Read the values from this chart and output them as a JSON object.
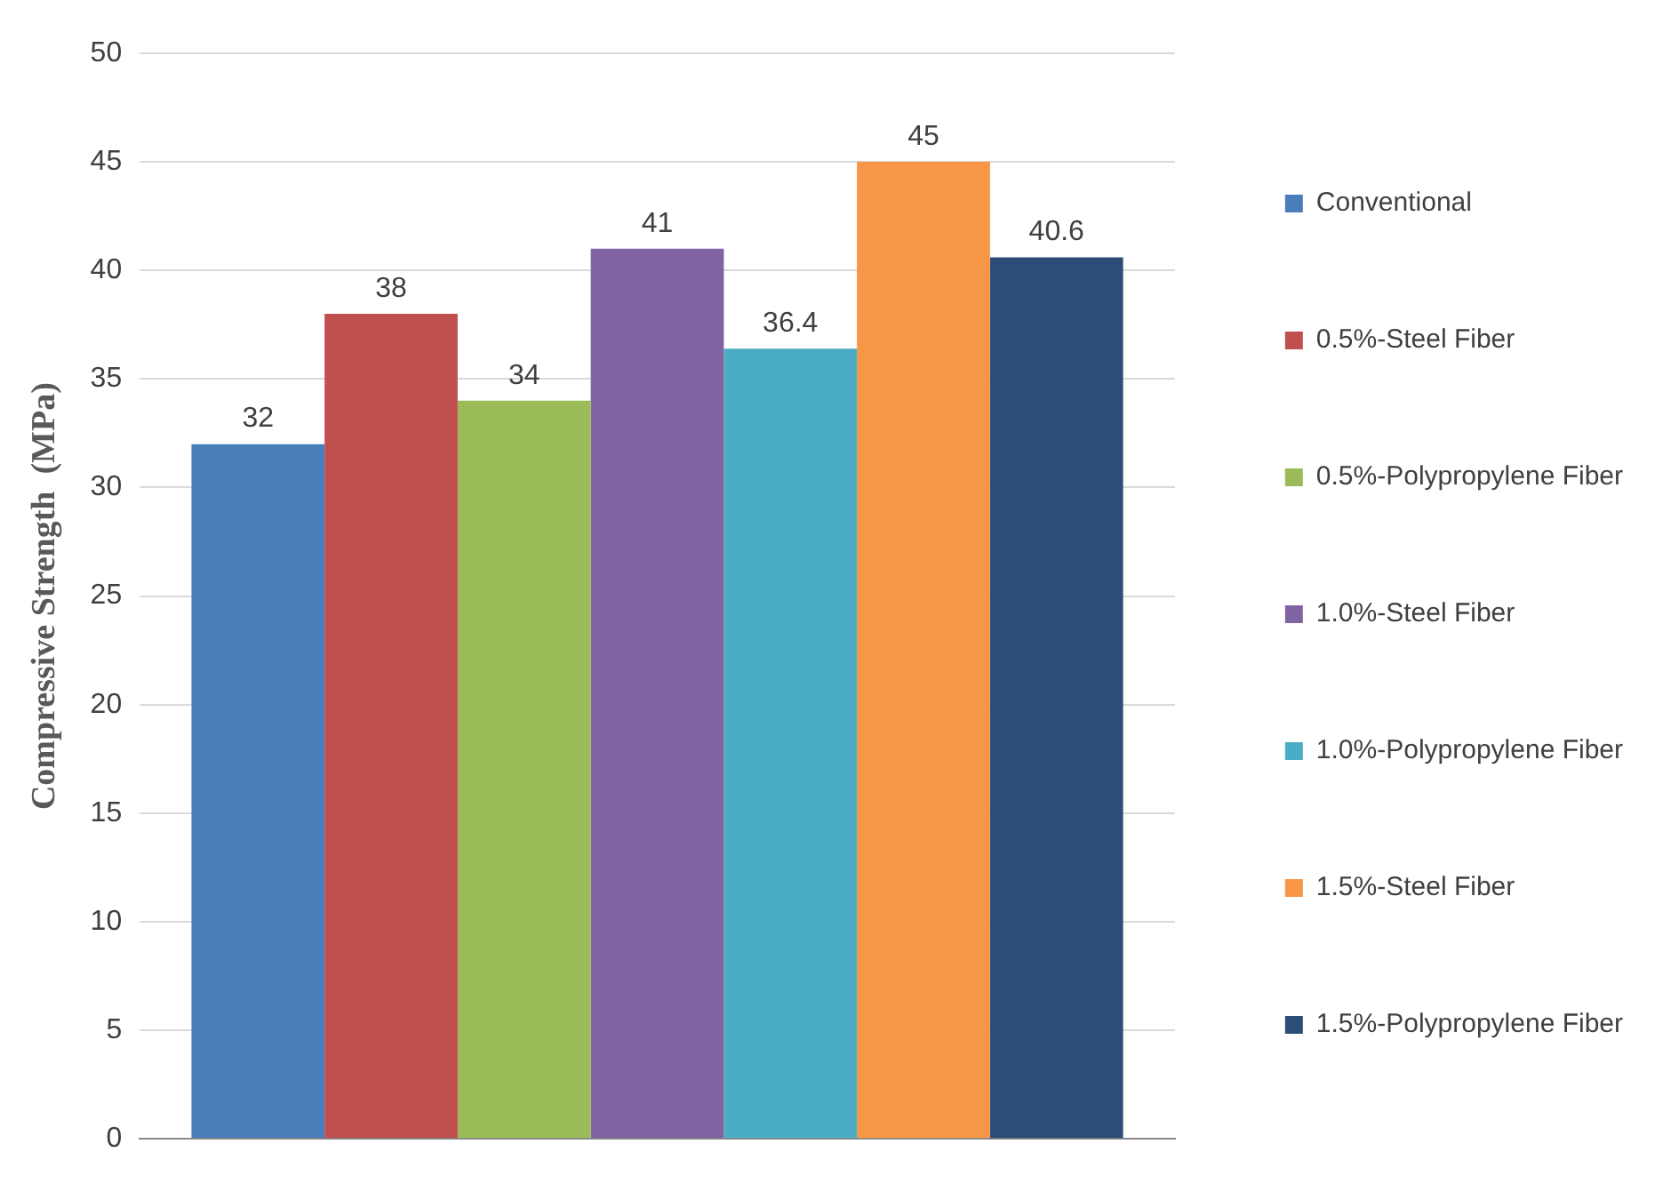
{
  "chart_data": {
    "type": "bar",
    "ylabel": "Compressive Strength  (MPa)",
    "categories": [
      null
    ],
    "series": [
      {
        "name": "Conventional",
        "color": "#4a7ebb",
        "values": [
          32
        ]
      },
      {
        "name": "0.5%-Steel Fiber",
        "color": "#c0504d",
        "values": [
          38
        ]
      },
      {
        "name": "0.5%-Polypropylene Fiber",
        "color": "#9bbb59",
        "values": [
          34
        ]
      },
      {
        "name": "1.0%-Steel Fiber",
        "color": "#8064a2",
        "values": [
          41
        ]
      },
      {
        "name": "1.0%-Polypropylene Fiber",
        "color": "#4bacc6",
        "values": [
          36.4
        ]
      },
      {
        "name": "1.5%-Steel Fiber",
        "color": "#f79646",
        "values": [
          45
        ]
      },
      {
        "name": "1.5%-Polypropylene Fiber",
        "color": "#2c4d75",
        "values": [
          40.6
        ]
      }
    ],
    "ylim": [
      0,
      50
    ],
    "yticks": [
      0,
      5,
      10,
      15,
      20,
      25,
      30,
      35,
      40,
      45,
      50
    ],
    "grid": "y",
    "legend": "right",
    "data_labels": true
  }
}
